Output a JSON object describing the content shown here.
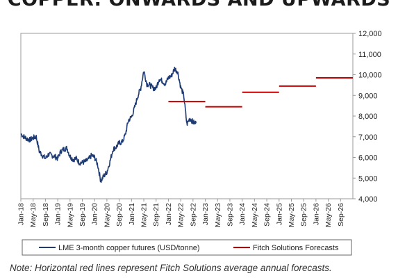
{
  "title": "COPPER: ONWARDS AND UPWARDS",
  "note": "Note: Horizontal red lines represent Fitch Solutions average annual forecasts.",
  "colors": {
    "series": "#1f3b73",
    "forecast": "#c00000",
    "axis": "#999999",
    "text": "#222222"
  },
  "chart_data": {
    "type": "line",
    "x_range": [
      "2018-01",
      "2026-12"
    ],
    "ylim": [
      4000,
      12000
    ],
    "y_ticks": [
      "4,000",
      "5,000",
      "6,000",
      "7,000",
      "8,000",
      "9,000",
      "10,000",
      "11,000",
      "12,000"
    ],
    "y_axis_side": "right",
    "grid": false,
    "x_ticks": [
      "Jan-18",
      "May-18",
      "Sep-18",
      "Jan-19",
      "May-19",
      "Sep-19",
      "Jan-20",
      "May-20",
      "Sep-20",
      "Jan-21",
      "May-21",
      "Sep-21",
      "Jan-22",
      "May-22",
      "Sep-22",
      "Jan-23",
      "May-23",
      "Sep-23",
      "Jan-24",
      "May-24",
      "Sep-24",
      "Jan-25",
      "May-25",
      "Sep-25",
      "Jan-26",
      "May-26",
      "Sep-26"
    ],
    "legend_position": "bottom",
    "series": [
      {
        "name": "LME 3-month copper futures (USD/tonne)",
        "kind": "line",
        "points": [
          [
            "2018-01",
            7150
          ],
          [
            "2018-02",
            7000
          ],
          [
            "2018-03",
            6900
          ],
          [
            "2018-04",
            6850
          ],
          [
            "2018-05",
            6950
          ],
          [
            "2018-06",
            7000
          ],
          [
            "2018-07",
            6300
          ],
          [
            "2018-08",
            6100
          ],
          [
            "2018-09",
            5950
          ],
          [
            "2018-10",
            6150
          ],
          [
            "2018-11",
            6100
          ],
          [
            "2018-12",
            6050
          ],
          [
            "2019-01",
            5950
          ],
          [
            "2019-02",
            6300
          ],
          [
            "2019-03",
            6400
          ],
          [
            "2019-04",
            6450
          ],
          [
            "2019-05",
            6050
          ],
          [
            "2019-06",
            5900
          ],
          [
            "2019-07",
            5950
          ],
          [
            "2019-08",
            5750
          ],
          [
            "2019-09",
            5750
          ],
          [
            "2019-10",
            5800
          ],
          [
            "2019-11",
            5900
          ],
          [
            "2019-12",
            6100
          ],
          [
            "2020-01",
            6000
          ],
          [
            "2020-02",
            5650
          ],
          [
            "2020-03",
            4850
          ],
          [
            "2020-04",
            5100
          ],
          [
            "2020-05",
            5300
          ],
          [
            "2020-06",
            5800
          ],
          [
            "2020-07",
            6400
          ],
          [
            "2020-08",
            6500
          ],
          [
            "2020-09",
            6700
          ],
          [
            "2020-10",
            6750
          ],
          [
            "2020-11",
            7100
          ],
          [
            "2020-12",
            7800
          ],
          [
            "2021-01",
            7950
          ],
          [
            "2021-02",
            8400
          ],
          [
            "2021-03",
            8950
          ],
          [
            "2021-04",
            9350
          ],
          [
            "2021-05",
            10200
          ],
          [
            "2021-06",
            9550
          ],
          [
            "2021-07",
            9500
          ],
          [
            "2021-08",
            9350
          ],
          [
            "2021-09",
            9350
          ],
          [
            "2021-10",
            9800
          ],
          [
            "2021-11",
            9700
          ],
          [
            "2021-12",
            9550
          ],
          [
            "2022-01",
            9850
          ],
          [
            "2022-02",
            9950
          ],
          [
            "2022-03",
            10300
          ],
          [
            "2022-04",
            10150
          ],
          [
            "2022-05",
            9400
          ],
          [
            "2022-06",
            9000
          ],
          [
            "2022-07",
            7600
          ],
          [
            "2022-08",
            7900
          ],
          [
            "2022-09",
            7700
          ],
          [
            "2022-10",
            7650
          ]
        ]
      },
      {
        "name": "Fitch Solutions Forecasts",
        "kind": "annual-average",
        "segments": [
          {
            "year": 2022,
            "value": 8700
          },
          {
            "year": 2023,
            "value": 8450
          },
          {
            "year": 2024,
            "value": 9150
          },
          {
            "year": 2025,
            "value": 9450
          },
          {
            "year": 2026,
            "value": 9850
          }
        ]
      }
    ]
  }
}
